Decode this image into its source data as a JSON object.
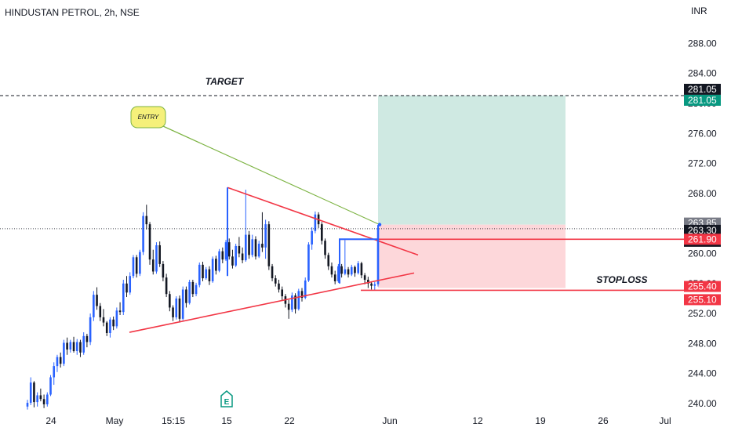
{
  "header": {
    "title": "HINDUSTAN PETROL, 2h, NSE",
    "currency": "INR"
  },
  "colors": {
    "bull": "#2962ff",
    "bear": "#131722",
    "trendline": "#f23645",
    "target_zone": "#cfe9e2",
    "stop_zone": "#fdd7da",
    "entry_callout": "#f5f07a"
  },
  "chart_data": {
    "type": "candlestick",
    "symbol": "HINDUSTAN PETROL",
    "interval": "2h",
    "exchange": "NSE",
    "ylim": [
      239,
      293
    ],
    "y_ticks": [
      "240.00",
      "244.00",
      "248.00",
      "252.00",
      "256.00",
      "260.00",
      "264.00",
      "268.00",
      "272.00",
      "276.00",
      "280.00",
      "284.00",
      "288.00"
    ],
    "x_ticks": [
      "24",
      "May",
      "15:15",
      "15",
      "22",
      "Jun",
      "12",
      "19",
      "26",
      "Jul"
    ],
    "annotations": {
      "target_label": "TARGET",
      "stoploss_label": "STOPLOSS",
      "entry_label": "ENTRY",
      "target_price": 281.05,
      "entry_price": 263.85,
      "stop_price": 255.4,
      "resistance_level": 261.9,
      "support_level": 255.1
    },
    "price_tags": [
      {
        "label": "281.05",
        "kind": "dark",
        "price": 281.05
      },
      {
        "label": "281.05",
        "kind": "green",
        "price": 281.05
      },
      {
        "label": "263.85",
        "kind": "grey",
        "price": 263.85
      },
      {
        "label": "263.30",
        "kind": "dark",
        "price": 263.3
      },
      {
        "label": "01:56:29",
        "kind": "dark",
        "price": 263.3
      },
      {
        "label": "261.90",
        "kind": "red",
        "price": 261.9
      },
      {
        "label": "255.40",
        "kind": "red",
        "price": 255.4
      },
      {
        "label": "255.10",
        "kind": "red",
        "price": 255.1
      }
    ],
    "candles": [
      [
        239.6,
        240.5,
        239.2,
        240.1
      ],
      [
        240.1,
        243.5,
        239.8,
        242.8
      ],
      [
        242.8,
        243.0,
        239.5,
        240.2
      ],
      [
        240.2,
        241.5,
        239.6,
        241.1
      ],
      [
        241.1,
        242.0,
        240.3,
        240.6
      ],
      [
        240.6,
        241.2,
        239.4,
        239.9
      ],
      [
        239.9,
        241.5,
        239.6,
        241.2
      ],
      [
        241.2,
        243.8,
        241.0,
        243.5
      ],
      [
        243.5,
        245.5,
        242.5,
        245.0
      ],
      [
        245.0,
        246.5,
        244.2,
        246.2
      ],
      [
        246.2,
        246.8,
        244.8,
        245.3
      ],
      [
        245.3,
        248.5,
        245.0,
        248.1
      ],
      [
        248.1,
        248.8,
        246.5,
        247.2
      ],
      [
        247.2,
        248.5,
        246.8,
        248.2
      ],
      [
        248.2,
        248.9,
        246.8,
        247.0
      ],
      [
        247.0,
        248.6,
        246.5,
        248.2
      ],
      [
        248.2,
        248.5,
        246.2,
        246.8
      ],
      [
        246.8,
        249.5,
        246.5,
        249.0
      ],
      [
        249.0,
        249.3,
        247.5,
        248.2
      ],
      [
        248.2,
        252.0,
        247.8,
        251.5
      ],
      [
        251.5,
        255.0,
        251.0,
        254.5
      ],
      [
        254.5,
        255.5,
        252.5,
        253.0
      ],
      [
        253.0,
        253.4,
        251.0,
        251.5
      ],
      [
        251.5,
        252.6,
        250.3,
        250.8
      ],
      [
        250.8,
        251.0,
        249.0,
        249.4
      ],
      [
        249.4,
        251.5,
        248.8,
        251.2
      ],
      [
        251.2,
        251.6,
        249.8,
        250.3
      ],
      [
        250.3,
        252.8,
        250.0,
        252.4
      ],
      [
        252.4,
        253.5,
        251.8,
        252.2
      ],
      [
        252.2,
        256.5,
        251.8,
        256.0
      ],
      [
        256.0,
        257.0,
        254.2,
        254.8
      ],
      [
        254.8,
        257.5,
        254.5,
        257.0
      ],
      [
        257.0,
        259.8,
        256.7,
        259.5
      ],
      [
        259.5,
        259.8,
        256.8,
        257.3
      ],
      [
        257.3,
        260.5,
        257.0,
        260.2
      ],
      [
        260.2,
        265.5,
        259.8,
        265.0
      ],
      [
        265.0,
        266.5,
        263.2,
        263.9
      ],
      [
        263.9,
        264.2,
        258.5,
        259.2
      ],
      [
        259.2,
        260.5,
        257.2,
        257.6
      ],
      [
        257.6,
        261.5,
        257.3,
        261.1
      ],
      [
        261.1,
        261.6,
        258.2,
        258.6
      ],
      [
        258.6,
        259.0,
        256.3,
        256.8
      ],
      [
        256.8,
        257.3,
        254.2,
        254.6
      ],
      [
        254.6,
        255.0,
        252.3,
        252.8
      ],
      [
        252.8,
        253.1,
        251.0,
        251.5
      ],
      [
        251.5,
        254.3,
        251.2,
        254.0
      ],
      [
        254.0,
        254.4,
        250.8,
        251.3
      ],
      [
        251.3,
        255.6,
        251.1,
        255.2
      ],
      [
        255.2,
        255.6,
        252.8,
        253.4
      ],
      [
        253.4,
        256.5,
        253.2,
        256.2
      ],
      [
        256.2,
        256.5,
        254.2,
        254.6
      ],
      [
        254.6,
        256.1,
        254.3,
        255.8
      ],
      [
        255.8,
        258.8,
        255.5,
        258.5
      ],
      [
        258.5,
        258.9,
        256.3,
        256.7
      ],
      [
        256.7,
        258.2,
        256.5,
        257.9
      ],
      [
        257.9,
        258.3,
        255.8,
        256.3
      ],
      [
        256.3,
        259.6,
        256.1,
        259.3
      ],
      [
        259.3,
        259.7,
        257.2,
        257.7
      ],
      [
        257.7,
        260.6,
        257.5,
        260.3
      ],
      [
        260.3,
        260.8,
        258.7,
        259.2
      ],
      [
        259.2,
        261.8,
        259.0,
        261.5
      ],
      [
        261.5,
        262.0,
        259.2,
        259.6
      ],
      [
        259.6,
        260.5,
        258.0,
        258.4
      ],
      [
        258.4,
        261.3,
        258.2,
        261.0
      ],
      [
        261.0,
        262.2,
        259.5,
        260.0
      ],
      [
        260.0,
        260.8,
        258.7,
        259.1
      ],
      [
        259.1,
        268.5,
        258.9,
        262.5
      ],
      [
        262.5,
        263.0,
        259.3,
        259.8
      ],
      [
        259.8,
        262.5,
        259.5,
        261.9
      ],
      [
        261.9,
        262.3,
        259.2,
        259.6
      ],
      [
        259.6,
        261.7,
        259.4,
        261.3
      ],
      [
        261.3,
        265.5,
        260.2,
        260.8
      ],
      [
        260.8,
        264.5,
        259.3,
        263.9
      ],
      [
        263.9,
        264.3,
        257.8,
        258.3
      ],
      [
        258.3,
        258.6,
        256.3,
        256.7
      ],
      [
        256.7,
        257.1,
        255.6,
        256.0
      ],
      [
        256.0,
        256.5,
        254.8,
        255.2
      ],
      [
        255.2,
        255.6,
        253.8,
        254.3
      ],
      [
        254.3,
        254.6,
        252.8,
        253.3
      ],
      [
        253.3,
        253.8,
        251.3,
        252.5
      ],
      [
        252.5,
        254.8,
        252.2,
        254.4
      ],
      [
        254.4,
        254.7,
        252.0,
        252.6
      ],
      [
        252.6,
        255.3,
        252.4,
        255.0
      ],
      [
        255.0,
        255.4,
        253.6,
        254.1
      ],
      [
        254.1,
        256.8,
        253.9,
        256.4
      ],
      [
        256.4,
        261.5,
        256.2,
        261.2
      ],
      [
        261.2,
        263.5,
        260.5,
        263.0
      ],
      [
        263.0,
        265.6,
        262.7,
        265.2
      ],
      [
        265.2,
        265.5,
        263.4,
        263.9
      ],
      [
        263.9,
        264.2,
        261.2,
        261.7
      ],
      [
        261.7,
        262.0,
        259.3,
        259.8
      ],
      [
        259.8,
        260.1,
        257.8,
        258.3
      ],
      [
        258.3,
        258.8,
        256.8,
        257.2
      ],
      [
        257.2,
        257.7,
        255.9,
        256.3
      ],
      [
        256.3,
        258.6,
        256.1,
        258.3
      ],
      [
        258.3,
        258.6,
        256.8,
        257.3
      ],
      [
        257.3,
        261.8,
        257.1,
        257.9
      ],
      [
        257.9,
        258.2,
        256.8,
        257.2
      ],
      [
        257.2,
        258.5,
        257.0,
        258.2
      ],
      [
        258.2,
        258.4,
        256.9,
        257.4
      ],
      [
        257.4,
        259.0,
        257.2,
        258.7
      ],
      [
        258.7,
        258.9,
        256.7,
        257.1
      ],
      [
        257.1,
        257.4,
        255.9,
        256.5
      ],
      [
        256.5,
        256.9,
        255.4,
        256.0
      ],
      [
        256.0,
        256.3,
        255.2,
        255.7
      ],
      [
        255.7,
        256.2,
        255.1,
        255.9
      ],
      [
        255.9,
        263.5,
        255.6,
        263.3
      ]
    ]
  }
}
